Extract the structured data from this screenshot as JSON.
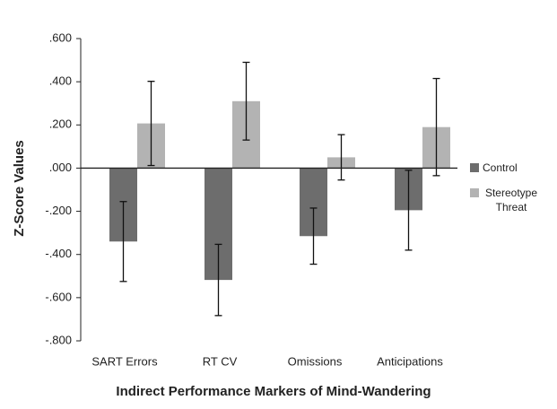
{
  "chart_data": {
    "type": "bar",
    "xlabel": "Indirect Performance Markers of Mind-Wandering",
    "ylabel": "Z-Score Values",
    "categories": [
      "SART Errors",
      "RT CV",
      "Omissions",
      "Anticipations"
    ],
    "series": [
      {
        "name": "Control",
        "color": "#6d6d6d",
        "values": [
          -0.34,
          -0.518,
          -0.315,
          -0.195
        ],
        "errors": [
          0.185,
          0.165,
          0.13,
          0.185
        ]
      },
      {
        "name": "Stereotype Threat",
        "color": "#b3b3b3",
        "values": [
          0.207,
          0.31,
          0.05,
          0.19
        ],
        "errors": [
          0.195,
          0.18,
          0.105,
          0.225
        ]
      }
    ],
    "ylim": [
      -0.8,
      0.6
    ],
    "yticks": [
      {
        "value": -0.8,
        "label": "-.800"
      },
      {
        "value": -0.6,
        "label": "-.600"
      },
      {
        "value": -0.4,
        "label": "-.400"
      },
      {
        "value": -0.2,
        "label": "-.200"
      },
      {
        "value": 0,
        "label": ".000"
      },
      {
        "value": 0.2,
        "label": ".200"
      },
      {
        "value": 0.4,
        "label": ".400"
      },
      {
        "value": 0.6,
        "label": ".600"
      }
    ]
  }
}
